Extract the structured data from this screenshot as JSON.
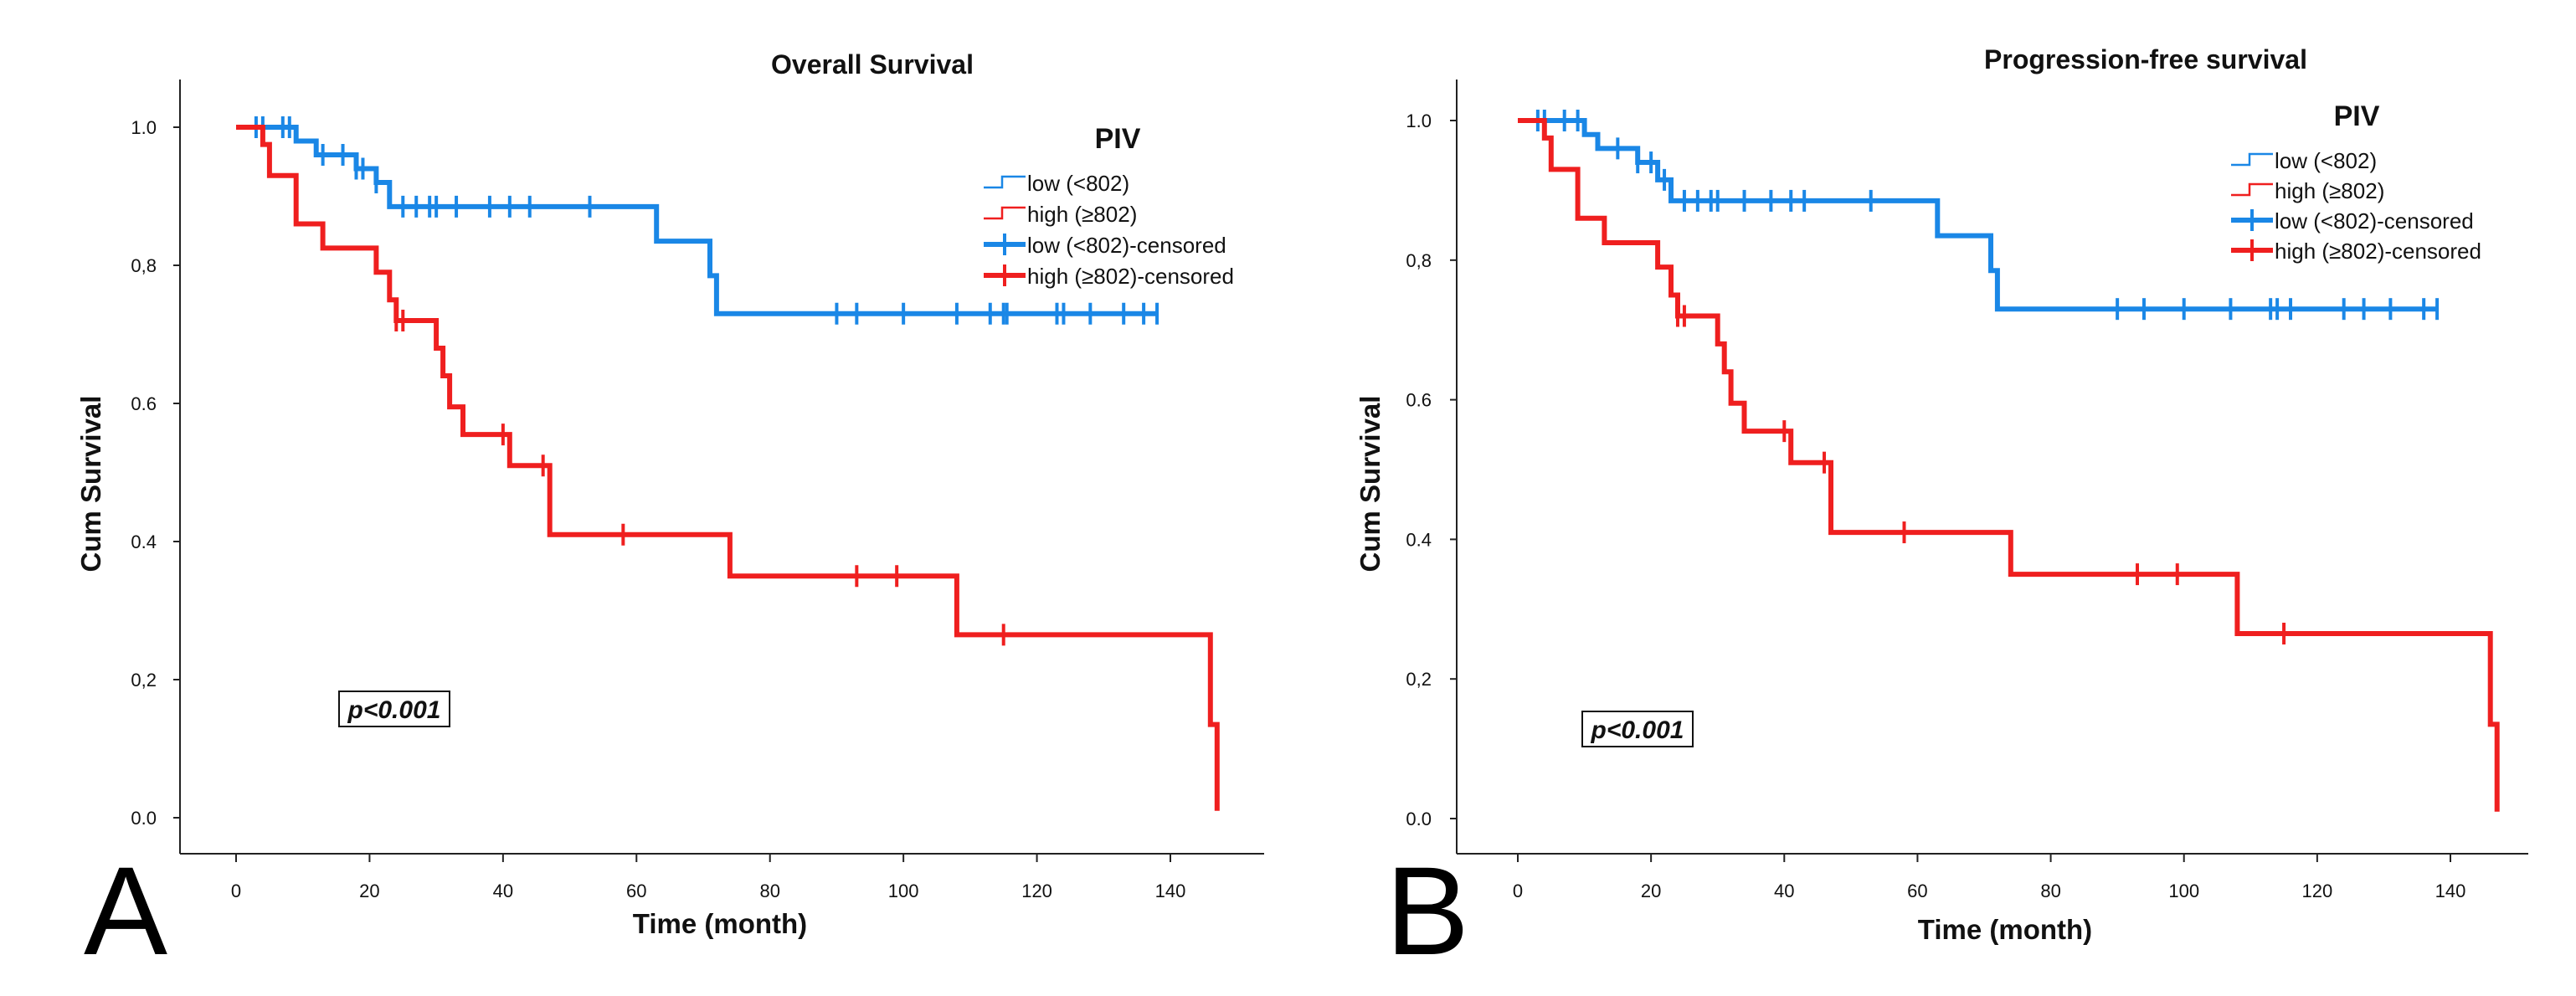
{
  "colors": {
    "low": "#1a87e6",
    "high": "#ef1f1f",
    "axis": "#222222"
  },
  "x_ticks": [
    0,
    20,
    40,
    60,
    80,
    100,
    120,
    140
  ],
  "y_ticks": [
    "0.0",
    "0,2",
    "0.4",
    "0.6",
    "0,8",
    "1.0"
  ],
  "chart_data": [
    {
      "type": "line",
      "panel_letter": "A",
      "title": "Overall Survival",
      "xlabel": "Time (month)",
      "ylabel": "Cum Survival",
      "xlim": [
        -8,
        157
      ],
      "ylim": [
        -0.05,
        1.07
      ],
      "legend": {
        "title": "PIV",
        "entries": [
          "low (<802)",
          "high (≥802)",
          "low (<802)-censored",
          "high (≥802)-censored"
        ]
      },
      "annotation": "p<0.001",
      "series": [
        {
          "name": "low (<802)",
          "steps": [
            [
              0,
              1.0
            ],
            [
              9,
              0.98
            ],
            [
              12,
              0.96
            ],
            [
              18,
              0.94
            ],
            [
              21,
              0.92
            ],
            [
              23,
              0.885
            ],
            [
              63,
              0.835
            ],
            [
              71,
              0.785
            ],
            [
              72,
              0.73
            ],
            [
              138,
              0.73
            ]
          ],
          "censored": [
            [
              3,
              1.0
            ],
            [
              4,
              1.0
            ],
            [
              7,
              1.0
            ],
            [
              8,
              1.0
            ],
            [
              13,
              0.96
            ],
            [
              16,
              0.96
            ],
            [
              18,
              0.94
            ],
            [
              19,
              0.94
            ],
            [
              21,
              0.92
            ],
            [
              25,
              0.885
            ],
            [
              27,
              0.885
            ],
            [
              29,
              0.885
            ],
            [
              30,
              0.885
            ],
            [
              33,
              0.885
            ],
            [
              38,
              0.885
            ],
            [
              41,
              0.885
            ],
            [
              44,
              0.885
            ],
            [
              53,
              0.885
            ],
            [
              90,
              0.73
            ],
            [
              93,
              0.73
            ],
            [
              100,
              0.73
            ],
            [
              108,
              0.73
            ],
            [
              113,
              0.73
            ],
            [
              115,
              0.73
            ],
            [
              115.5,
              0.73
            ],
            [
              123,
              0.73
            ],
            [
              124,
              0.73
            ],
            [
              128,
              0.73
            ],
            [
              133,
              0.73
            ],
            [
              136,
              0.73
            ],
            [
              138,
              0.73
            ]
          ]
        },
        {
          "name": "high (≥802)",
          "steps": [
            [
              0,
              1.0
            ],
            [
              4,
              0.975
            ],
            [
              5,
              0.93
            ],
            [
              9,
              0.86
            ],
            [
              13,
              0.825
            ],
            [
              21,
              0.79
            ],
            [
              23,
              0.75
            ],
            [
              24,
              0.72
            ],
            [
              30,
              0.68
            ],
            [
              31,
              0.64
            ],
            [
              32,
              0.595
            ],
            [
              34,
              0.555
            ],
            [
              41,
              0.51
            ],
            [
              47,
              0.41
            ],
            [
              74,
              0.35
            ],
            [
              108,
              0.265
            ],
            [
              146,
              0.135
            ],
            [
              147,
              0.01
            ]
          ],
          "censored": [
            [
              24,
              0.72
            ],
            [
              25,
              0.72
            ],
            [
              40,
              0.555
            ],
            [
              46,
              0.51
            ],
            [
              58,
              0.41
            ],
            [
              93,
              0.35
            ],
            [
              99,
              0.35
            ],
            [
              115,
              0.265
            ]
          ]
        }
      ]
    },
    {
      "type": "line",
      "panel_letter": "B",
      "title": "Progression-free survival",
      "xlabel": "Time (month)",
      "ylabel": "Cum Survival",
      "xlim": [
        -8,
        157
      ],
      "ylim": [
        -0.05,
        1.07
      ],
      "legend": {
        "title": "PIV",
        "entries": [
          "low (<802)",
          "high (≥802)",
          "low (<802)-censored",
          "high (≥802)-censored"
        ]
      },
      "annotation": "p<0.001",
      "series": [
        {
          "name": "low (<802)",
          "steps": [
            [
              0,
              1.0
            ],
            [
              10,
              0.98
            ],
            [
              12,
              0.96
            ],
            [
              18,
              0.94
            ],
            [
              21,
              0.915
            ],
            [
              23,
              0.885
            ],
            [
              63,
              0.835
            ],
            [
              71,
              0.785
            ],
            [
              72,
              0.73
            ],
            [
              138,
              0.73
            ]
          ],
          "censored": [
            [
              3,
              1.0
            ],
            [
              4,
              1.0
            ],
            [
              7,
              1.0
            ],
            [
              9,
              1.0
            ],
            [
              15,
              0.96
            ],
            [
              18,
              0.94
            ],
            [
              20,
              0.94
            ],
            [
              22,
              0.915
            ],
            [
              25,
              0.885
            ],
            [
              27,
              0.885
            ],
            [
              29,
              0.885
            ],
            [
              30,
              0.885
            ],
            [
              34,
              0.885
            ],
            [
              38,
              0.885
            ],
            [
              41,
              0.885
            ],
            [
              43,
              0.885
            ],
            [
              53,
              0.885
            ],
            [
              90,
              0.73
            ],
            [
              94,
              0.73
            ],
            [
              100,
              0.73
            ],
            [
              107,
              0.73
            ],
            [
              113,
              0.73
            ],
            [
              114,
              0.73
            ],
            [
              116,
              0.73
            ],
            [
              124,
              0.73
            ],
            [
              127,
              0.73
            ],
            [
              131,
              0.73
            ],
            [
              136,
              0.73
            ],
            [
              138,
              0.73
            ]
          ]
        },
        {
          "name": "high (≥802)",
          "steps": [
            [
              0,
              1.0
            ],
            [
              4,
              0.975
            ],
            [
              5,
              0.93
            ],
            [
              9,
              0.86
            ],
            [
              13,
              0.825
            ],
            [
              21,
              0.79
            ],
            [
              23,
              0.75
            ],
            [
              24,
              0.72
            ],
            [
              30,
              0.68
            ],
            [
              31,
              0.64
            ],
            [
              32,
              0.595
            ],
            [
              34,
              0.555
            ],
            [
              41,
              0.51
            ],
            [
              47,
              0.41
            ],
            [
              74,
              0.35
            ],
            [
              108,
              0.265
            ],
            [
              146,
              0.135
            ],
            [
              147,
              0.01
            ]
          ],
          "censored": [
            [
              24,
              0.72
            ],
            [
              25,
              0.72
            ],
            [
              40,
              0.555
            ],
            [
              46,
              0.51
            ],
            [
              58,
              0.41
            ],
            [
              93,
              0.35
            ],
            [
              99,
              0.35
            ],
            [
              115,
              0.265
            ]
          ]
        }
      ]
    }
  ]
}
